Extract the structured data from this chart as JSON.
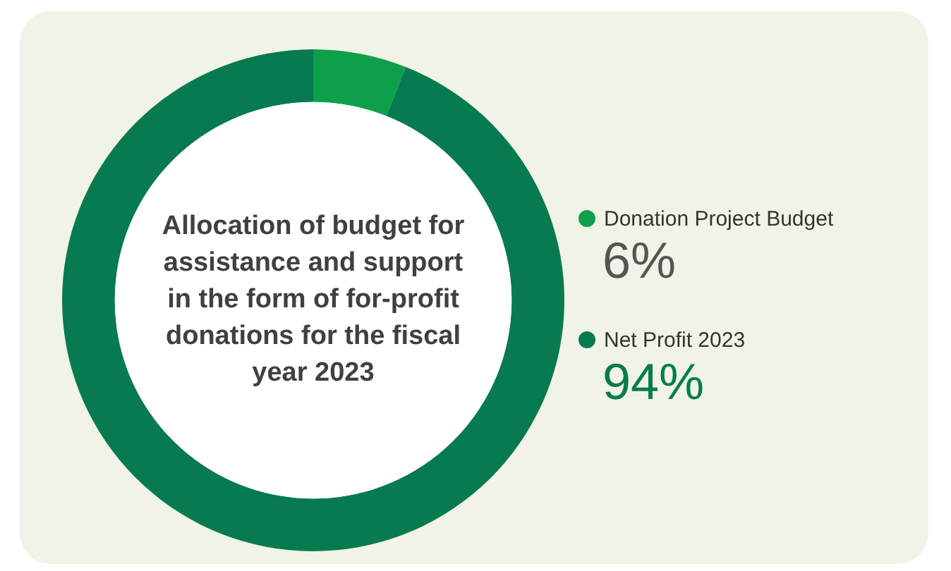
{
  "chart_data": {
    "type": "donut",
    "title": "Allocation of budget for assistance and support in the form of for-profit donations for the fiscal year 2023",
    "categories": [
      "Donation Project Budget",
      "Net Profit 2023"
    ],
    "values": [
      6,
      94
    ],
    "colors": [
      "#0e9f4a",
      "#077a50"
    ],
    "value_labels": [
      "6%",
      "94%"
    ],
    "legend": "right"
  }
}
